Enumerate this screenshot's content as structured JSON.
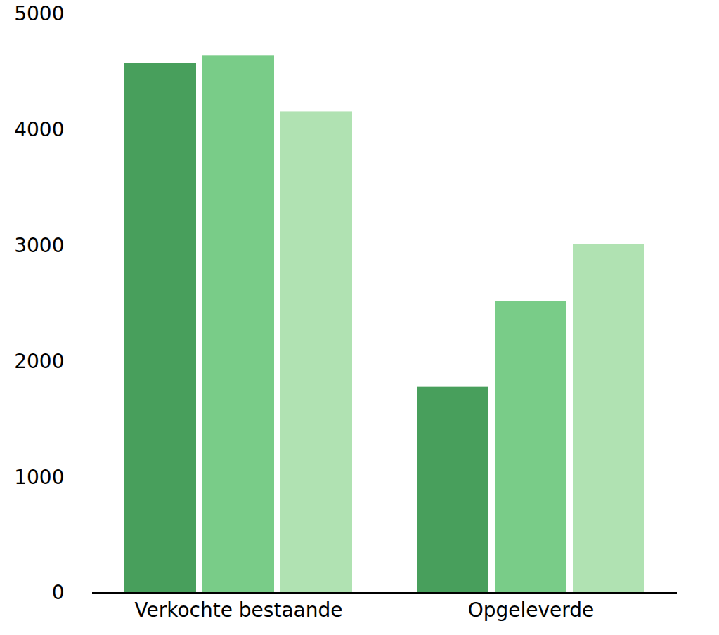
{
  "chart_data": {
    "type": "bar",
    "categories": [
      "Verkochte bestaande",
      "Opgeleverde"
    ],
    "series": [
      {
        "color": "#489f5c",
        "values": [
          4580,
          1780
        ]
      },
      {
        "color": "#79cc88",
        "values": [
          4640,
          2520
        ]
      },
      {
        "color": "#b0e2b2",
        "values": [
          4160,
          3010
        ]
      }
    ],
    "ylim": [
      0,
      5000
    ],
    "yticks": [
      0,
      1000,
      2000,
      3000,
      4000,
      5000
    ],
    "grid": false
  }
}
